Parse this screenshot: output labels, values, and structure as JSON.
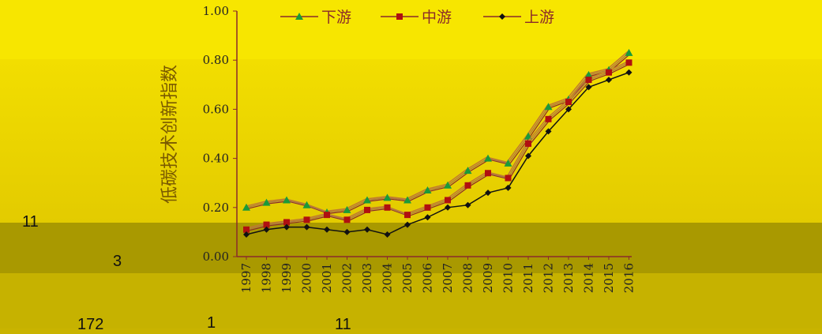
{
  "chart_data": {
    "type": "line",
    "title": "",
    "xlabel": "",
    "ylabel": "低碳技术创新指数",
    "ylim": [
      0,
      1
    ],
    "yticks": [
      "0.00",
      "0.20",
      "0.40",
      "0.60",
      "0.80",
      "1.00"
    ],
    "x": [
      "1997",
      "1998",
      "1999",
      "2000",
      "2001",
      "2002",
      "2003",
      "2004",
      "2005",
      "2006",
      "2007",
      "2008",
      "2009",
      "2010",
      "2011",
      "2012",
      "2013",
      "2014",
      "2015",
      "2016"
    ],
    "legend_position": "top",
    "series": [
      {
        "name": "下游",
        "color": "#1a9a3a",
        "marker": "triangle",
        "values": [
          0.2,
          0.22,
          0.23,
          0.21,
          0.18,
          0.19,
          0.23,
          0.24,
          0.23,
          0.27,
          0.29,
          0.35,
          0.4,
          0.38,
          0.49,
          0.61,
          0.64,
          0.74,
          0.76,
          0.83
        ]
      },
      {
        "name": "中游",
        "color": "#b01010",
        "marker": "square",
        "values": [
          0.11,
          0.13,
          0.14,
          0.15,
          0.17,
          0.15,
          0.19,
          0.2,
          0.17,
          0.2,
          0.23,
          0.29,
          0.34,
          0.32,
          0.46,
          0.56,
          0.63,
          0.72,
          0.75,
          0.79
        ]
      },
      {
        "name": "上游",
        "color": "#111111",
        "marker": "diamond",
        "values": [
          0.09,
          0.11,
          0.12,
          0.12,
          0.11,
          0.1,
          0.11,
          0.09,
          0.13,
          0.16,
          0.2,
          0.21,
          0.26,
          0.28,
          0.41,
          0.51,
          0.6,
          0.69,
          0.72,
          0.75
        ]
      }
    ]
  },
  "overlay_labels": {
    "left_11": "11",
    "left_3": "3",
    "bottom_172": "172",
    "bottom_1": "1",
    "bottom_11": "11"
  },
  "colors": {
    "band_top": "#f5e400",
    "band_mid": "#ecd800",
    "band_dark": "#a89800",
    "band_bottom": "#c4b000",
    "axis": "#8a2a2a",
    "line_offset": "#c07a30"
  }
}
